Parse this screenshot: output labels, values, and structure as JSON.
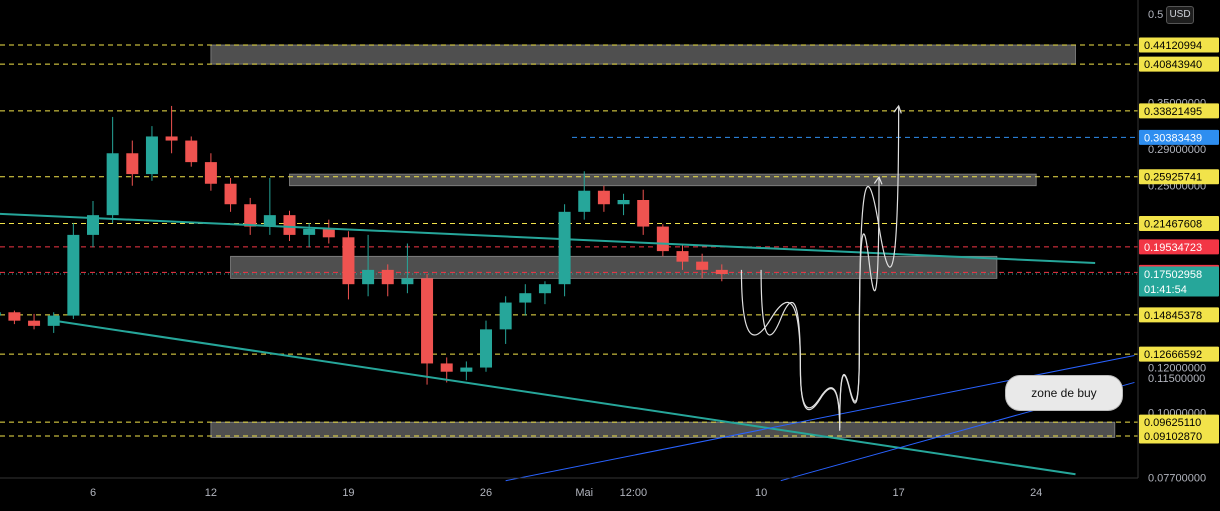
{
  "currency": "USD",
  "annotation": "zone de buy",
  "chart_data": {
    "type": "candlestick",
    "title": "",
    "xlabel": "",
    "ylabel": "",
    "y_scale": "log",
    "ylim": [
      0.074,
      0.53
    ],
    "grid": false,
    "axis": {
      "x_ticks": [
        {
          "label": "6",
          "date": "Apr 6"
        },
        {
          "label": "12",
          "date": "Apr 12"
        },
        {
          "label": "19",
          "date": "Apr 19"
        },
        {
          "label": "26",
          "date": "Apr 26"
        },
        {
          "label": "Mai",
          "date": "May 1"
        },
        {
          "label": "12:00",
          "date": "May 3 12:00"
        },
        {
          "label": "10",
          "date": "May 10"
        },
        {
          "label": "17",
          "date": "May 17"
        },
        {
          "label": "24",
          "date": "May 24"
        }
      ],
      "y_ticks": [
        {
          "label": "0.5",
          "value": 0.5
        },
        {
          "label": "0.35000000",
          "value": 0.35
        },
        {
          "label": "0.29000000",
          "value": 0.29
        },
        {
          "label": "0.25000000",
          "value": 0.25
        },
        {
          "label": "0.12000000",
          "value": 0.12
        },
        {
          "label": "0.11500000",
          "value": 0.115
        },
        {
          "label": "0.10000000",
          "value": 0.1
        },
        {
          "label": "0.07700000",
          "value": 0.077
        }
      ]
    },
    "levels": [
      {
        "label": "0.44120994",
        "value": 0.44120994,
        "color": "#f2e34a",
        "style": "dashed"
      },
      {
        "label": "0.40843940",
        "value": 0.4084394,
        "color": "#f2e34a",
        "style": "dashed"
      },
      {
        "label": "0.33821495",
        "value": 0.33821495,
        "color": "#f2e34a",
        "style": "dashed"
      },
      {
        "label": "0.30383439",
        "value": 0.30383439,
        "color": "#2e8ef0",
        "style": "dashed"
      },
      {
        "label": "0.25925741",
        "value": 0.25925741,
        "color": "#f2e34a",
        "style": "dashed"
      },
      {
        "label": "0.21467608",
        "value": 0.21467608,
        "color": "#f2e34a",
        "style": "dashed"
      },
      {
        "label": "0.19534723",
        "value": 0.19534723,
        "color": "#f23645",
        "style": "dashed"
      },
      {
        "label": "0.17623959",
        "value": 0.17623959,
        "color": "#f23645",
        "style": "dashed"
      },
      {
        "label": "0.17502958",
        "value": 0.17502958,
        "color": "#26a69a",
        "style": "dotted",
        "sublabel": "01:41:54"
      },
      {
        "label": "0.14845378",
        "value": 0.14845378,
        "color": "#f2e34a",
        "style": "dashed"
      },
      {
        "label": "0.12666592",
        "value": 0.12666592,
        "color": "#f2e34a",
        "style": "dashed"
      },
      {
        "label": "0.09625110",
        "value": 0.0962511,
        "color": "#f2e34a",
        "style": "dashed"
      },
      {
        "label": "0.09102870",
        "value": 0.0910287,
        "color": "#f2e34a",
        "style": "dashed"
      }
    ],
    "zones": [
      {
        "from": "Apr 12",
        "to": "May 26",
        "low": 0.4084394,
        "high": 0.44120994
      },
      {
        "from": "Apr 16",
        "to": "May 24",
        "low": 0.25,
        "high": 0.262
      },
      {
        "from": "Apr 13",
        "to": "May 22",
        "low": 0.172,
        "high": 0.188
      },
      {
        "from": "Apr 12",
        "to": "May 28",
        "low": 0.0905,
        "high": 0.0962511
      }
    ],
    "series": [
      {
        "kind": "ohlc",
        "points": [
          [
            "Apr 1",
            0.148,
            0.153,
            0.144,
            0.15
          ],
          [
            "Apr 2",
            0.15,
            0.151,
            0.143,
            0.145
          ],
          [
            "Apr 3",
            0.145,
            0.149,
            0.14,
            0.142
          ],
          [
            "Apr 4",
            0.142,
            0.15,
            0.138,
            0.148
          ],
          [
            "Apr 5",
            0.148,
            0.215,
            0.146,
            0.205
          ],
          [
            "Apr 6",
            0.205,
            0.235,
            0.195,
            0.222
          ],
          [
            "Apr 7",
            0.222,
            0.33,
            0.215,
            0.285
          ],
          [
            "Apr 8",
            0.285,
            0.3,
            0.25,
            0.262
          ],
          [
            "Apr 9",
            0.262,
            0.318,
            0.255,
            0.305
          ],
          [
            "Apr 10",
            0.305,
            0.345,
            0.285,
            0.3
          ],
          [
            "Apr 11",
            0.3,
            0.305,
            0.27,
            0.275
          ],
          [
            "Apr 12",
            0.275,
            0.285,
            0.245,
            0.252
          ],
          [
            "Apr 13",
            0.252,
            0.258,
            0.225,
            0.232
          ],
          [
            "Apr 14",
            0.232,
            0.238,
            0.205,
            0.212
          ],
          [
            "Apr 15",
            0.212,
            0.258,
            0.205,
            0.222
          ],
          [
            "Apr 16",
            0.222,
            0.226,
            0.2,
            0.205
          ],
          [
            "Apr 17",
            0.205,
            0.215,
            0.195,
            0.21
          ],
          [
            "Apr 18",
            0.21,
            0.218,
            0.198,
            0.203
          ],
          [
            "Apr 19",
            0.203,
            0.208,
            0.158,
            0.168
          ],
          [
            "Apr 20",
            0.168,
            0.205,
            0.16,
            0.178
          ],
          [
            "Apr 21",
            0.178,
            0.182,
            0.16,
            0.168
          ],
          [
            "Apr 22",
            0.168,
            0.198,
            0.162,
            0.172
          ],
          [
            "Apr 23",
            0.172,
            0.175,
            0.112,
            0.122
          ],
          [
            "Apr 24",
            0.122,
            0.125,
            0.113,
            0.118
          ],
          [
            "Apr 25",
            0.118,
            0.123,
            0.114,
            0.12
          ],
          [
            "Apr 26",
            0.12,
            0.145,
            0.118,
            0.14
          ],
          [
            "Apr 27",
            0.14,
            0.16,
            0.132,
            0.156
          ],
          [
            "Apr 28",
            0.156,
            0.168,
            0.148,
            0.162
          ],
          [
            "Apr 29",
            0.162,
            0.17,
            0.155,
            0.168
          ],
          [
            "Apr 30",
            0.168,
            0.232,
            0.16,
            0.225
          ],
          [
            "May 1",
            0.225,
            0.265,
            0.218,
            0.245
          ],
          [
            "May 2",
            0.245,
            0.25,
            0.225,
            0.232
          ],
          [
            "May 3",
            0.232,
            0.242,
            0.222,
            0.236
          ],
          [
            "May 4",
            0.236,
            0.246,
            0.205,
            0.212
          ],
          [
            "May 5",
            0.212,
            0.214,
            0.188,
            0.192
          ],
          [
            "May 6",
            0.192,
            0.198,
            0.178,
            0.184
          ],
          [
            "May 7",
            0.184,
            0.19,
            0.172,
            0.178
          ],
          [
            "May 8",
            0.178,
            0.182,
            0.17,
            0.17502958
          ]
        ]
      },
      {
        "kind": "line",
        "name": "",
        "color": "#26a69a",
        "points": [
          [
            "Mar 30",
            0.225
          ],
          [
            "May 27",
            0.183
          ]
        ]
      },
      {
        "kind": "line",
        "name": "",
        "color": "#26a69a",
        "points": [
          [
            "Apr 4",
            0.145
          ],
          [
            "May 26",
            0.078
          ]
        ]
      },
      {
        "kind": "line",
        "name": "",
        "color": "#2962ff",
        "points": [
          [
            "Apr 27",
            0.076
          ],
          [
            "May 29",
            0.126
          ]
        ]
      },
      {
        "kind": "line",
        "name": "",
        "color": "#2962ff",
        "points": [
          [
            "May 11",
            0.076
          ],
          [
            "May 29",
            0.113
          ]
        ]
      },
      {
        "kind": "projection",
        "name": "",
        "color": "#e0e0e0",
        "points": [
          [
            "May 9",
            0.178
          ],
          [
            "May 12",
            0.12
          ],
          [
            "May 14",
            0.093
          ],
          [
            "May 15",
            0.13
          ],
          [
            "May 17",
            0.345
          ]
        ]
      },
      {
        "kind": "projection",
        "name": "",
        "color": "#e0e0e0",
        "points": [
          [
            "May 10",
            0.178
          ],
          [
            "May 12",
            0.12
          ],
          [
            "May 14",
            0.094
          ],
          [
            "May 15",
            0.13
          ],
          [
            "May 16",
            0.259
          ]
        ]
      }
    ]
  }
}
